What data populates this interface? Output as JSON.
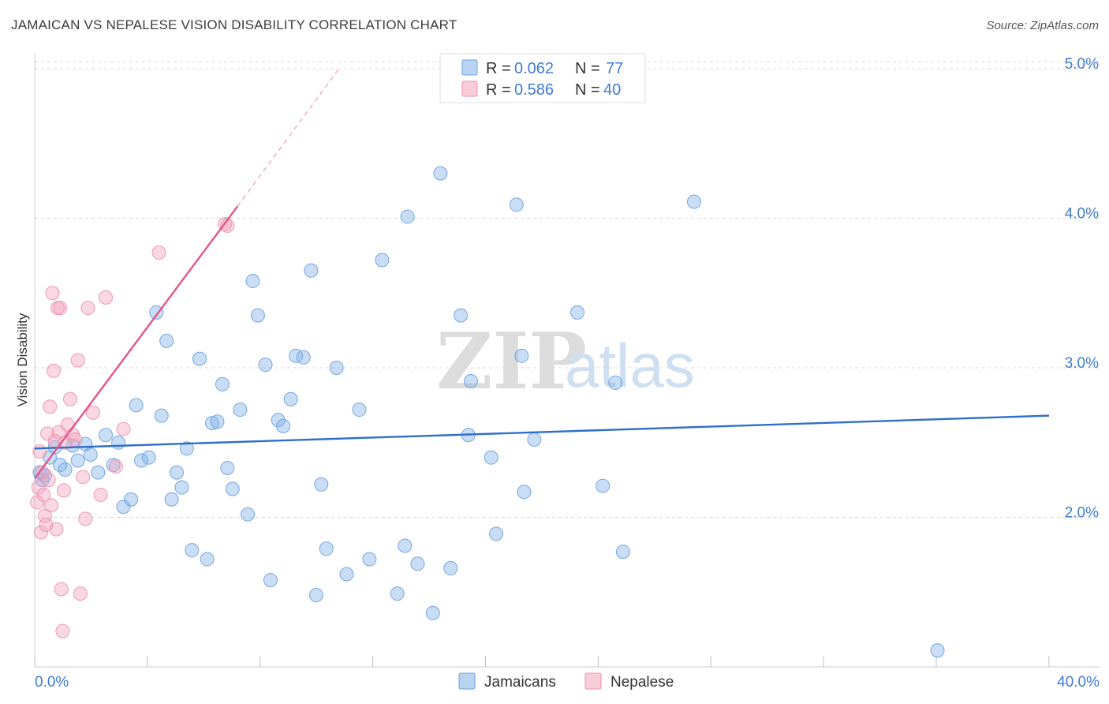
{
  "header": {
    "title": "JAMAICAN VS NEPALESE VISION DISABILITY CORRELATION CHART",
    "source": "Source: ZipAtlas.com"
  },
  "watermark": {
    "zip": "ZIP",
    "atlas": "atlas"
  },
  "colors": {
    "jamaicans": "#7fb0e8",
    "jamaicans_line": "#2f6fcc",
    "nepalese": "#f4a3bc",
    "nepalese_line": "#e2558a",
    "tick": "#3f7bd1",
    "grid": "#d9d9d9"
  },
  "legend_box": {
    "rows": [
      {
        "r_label": "R =",
        "r_value": "0.062",
        "n_label": "N =",
        "n_value": "77",
        "series": "jamaicans"
      },
      {
        "r_label": "R =",
        "r_value": "0.586",
        "n_label": "N =",
        "n_value": "40",
        "series": "nepalese"
      }
    ]
  },
  "chart_data": {
    "type": "scatter",
    "title": "JAMAICAN VS NEPALESE VISION DISABILITY CORRELATION CHART",
    "xlabel": "",
    "ylabel": "Vision Disability",
    "xlim": [
      0,
      40
    ],
    "ylim": [
      1.0,
      5.1
    ],
    "x_tick_labels": [
      "0.0%",
      "40.0%"
    ],
    "y_ticks": [
      2.0,
      3.0,
      4.0,
      5.0
    ],
    "y_tick_labels": [
      "2.0%",
      "3.0%",
      "4.0%",
      "5.0%"
    ],
    "grid": true,
    "legend": [
      "Jamaicans",
      "Nepalese"
    ],
    "legend_position": "bottom-center",
    "series": [
      {
        "name": "Jamaicans",
        "r": 0.062,
        "n": 77,
        "trend": {
          "x": [
            0,
            40
          ],
          "y": [
            2.46,
            2.68
          ]
        },
        "points": [
          [
            0.2,
            2.3
          ],
          [
            0.3,
            2.25
          ],
          [
            0.4,
            2.28
          ],
          [
            0.6,
            2.4
          ],
          [
            0.8,
            2.47
          ],
          [
            1.0,
            2.35
          ],
          [
            1.2,
            2.32
          ],
          [
            1.5,
            2.48
          ],
          [
            1.7,
            2.38
          ],
          [
            2.0,
            2.49
          ],
          [
            2.2,
            2.42
          ],
          [
            2.5,
            2.3
          ],
          [
            2.8,
            2.55
          ],
          [
            3.1,
            2.35
          ],
          [
            3.3,
            2.5
          ],
          [
            3.5,
            2.07
          ],
          [
            3.8,
            2.12
          ],
          [
            4.0,
            2.75
          ],
          [
            4.2,
            2.38
          ],
          [
            4.5,
            2.4
          ],
          [
            4.8,
            3.37
          ],
          [
            5.0,
            2.68
          ],
          [
            5.2,
            3.18
          ],
          [
            5.4,
            2.12
          ],
          [
            5.6,
            2.3
          ],
          [
            5.8,
            2.2
          ],
          [
            6.0,
            2.46
          ],
          [
            6.2,
            1.78
          ],
          [
            6.5,
            3.06
          ],
          [
            6.8,
            1.72
          ],
          [
            7.0,
            2.63
          ],
          [
            7.2,
            2.64
          ],
          [
            7.4,
            2.89
          ],
          [
            7.6,
            2.33
          ],
          [
            7.8,
            2.19
          ],
          [
            8.1,
            2.72
          ],
          [
            8.4,
            2.02
          ],
          [
            8.6,
            3.58
          ],
          [
            8.8,
            3.35
          ],
          [
            9.1,
            3.02
          ],
          [
            9.3,
            1.58
          ],
          [
            9.6,
            2.65
          ],
          [
            9.8,
            2.61
          ],
          [
            10.1,
            2.79
          ],
          [
            10.3,
            3.08
          ],
          [
            10.6,
            3.07
          ],
          [
            10.9,
            3.65
          ],
          [
            11.1,
            1.48
          ],
          [
            11.3,
            2.22
          ],
          [
            11.5,
            1.79
          ],
          [
            11.9,
            3.0
          ],
          [
            12.3,
            1.62
          ],
          [
            12.8,
            2.72
          ],
          [
            13.2,
            1.72
          ],
          [
            13.7,
            3.72
          ],
          [
            14.3,
            1.49
          ],
          [
            14.6,
            1.81
          ],
          [
            14.7,
            4.01
          ],
          [
            15.1,
            1.69
          ],
          [
            15.7,
            1.36
          ],
          [
            16.0,
            4.3
          ],
          [
            16.4,
            1.66
          ],
          [
            16.8,
            3.35
          ],
          [
            17.1,
            2.55
          ],
          [
            17.2,
            2.91
          ],
          [
            18.0,
            2.4
          ],
          [
            18.2,
            1.89
          ],
          [
            19.0,
            4.09
          ],
          [
            19.2,
            3.08
          ],
          [
            19.3,
            2.17
          ],
          [
            19.7,
            2.52
          ],
          [
            21.4,
            3.37
          ],
          [
            22.4,
            2.21
          ],
          [
            22.9,
            2.9
          ],
          [
            23.2,
            1.77
          ],
          [
            26.0,
            4.11
          ],
          [
            35.6,
            1.11
          ]
        ]
      },
      {
        "name": "Nepalese",
        "r": 0.586,
        "n": 40,
        "trend": {
          "x": [
            0,
            8.0
          ],
          "y": [
            2.26,
            4.08
          ]
        },
        "trend_extension": {
          "x": [
            8.0,
            12.0
          ],
          "y": [
            4.08,
            5.0
          ]
        },
        "points": [
          [
            0.1,
            2.1
          ],
          [
            0.15,
            2.2
          ],
          [
            0.2,
            2.44
          ],
          [
            0.25,
            1.9
          ],
          [
            0.3,
            2.3
          ],
          [
            0.35,
            2.15
          ],
          [
            0.4,
            2.01
          ],
          [
            0.45,
            1.95
          ],
          [
            0.5,
            2.56
          ],
          [
            0.55,
            2.25
          ],
          [
            0.6,
            2.74
          ],
          [
            0.65,
            2.08
          ],
          [
            0.7,
            3.5
          ],
          [
            0.75,
            2.98
          ],
          [
            0.8,
            2.51
          ],
          [
            0.85,
            1.92
          ],
          [
            0.9,
            3.4
          ],
          [
            0.95,
            2.57
          ],
          [
            1.0,
            3.4
          ],
          [
            1.05,
            1.52
          ],
          [
            1.1,
            1.24
          ],
          [
            1.15,
            2.18
          ],
          [
            1.2,
            2.5
          ],
          [
            1.3,
            2.62
          ],
          [
            1.4,
            2.79
          ],
          [
            1.5,
            2.55
          ],
          [
            1.6,
            2.52
          ],
          [
            1.7,
            3.05
          ],
          [
            1.8,
            1.49
          ],
          [
            1.9,
            2.27
          ],
          [
            2.0,
            1.99
          ],
          [
            2.1,
            3.4
          ],
          [
            2.3,
            2.7
          ],
          [
            2.6,
            2.15
          ],
          [
            2.8,
            3.47
          ],
          [
            3.2,
            2.34
          ],
          [
            3.5,
            2.59
          ],
          [
            4.9,
            3.77
          ],
          [
            7.5,
            3.96
          ],
          [
            7.6,
            3.95
          ]
        ]
      }
    ]
  }
}
